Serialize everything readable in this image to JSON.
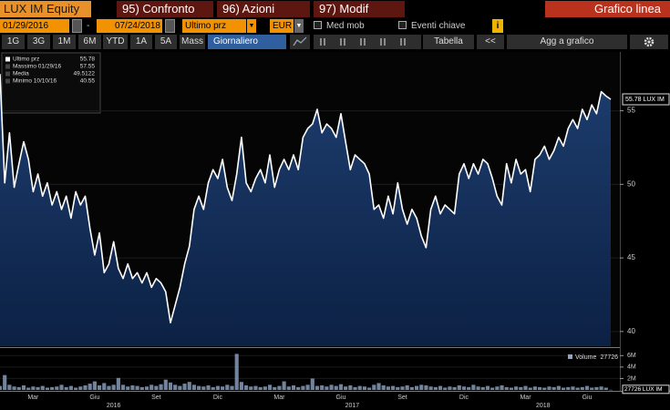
{
  "header": {
    "ticker": "LUX IM Equity",
    "menu": [
      "95) Confronto",
      "96) Azioni",
      "97) Modif"
    ],
    "view": "Grafico linea"
  },
  "controls": {
    "start": "01/29/2016",
    "dash": "-",
    "end": "07/24/2018",
    "field": "Ultimo prz",
    "currency": "EUR",
    "moving_avg": "Med mob",
    "events": "Eventi chiave",
    "info": "i"
  },
  "toolbar": {
    "periods": [
      "1G",
      "3G",
      "1M",
      "6M",
      "YTD",
      "1A",
      "5A",
      "Mass"
    ],
    "frequency": "Giornaliero",
    "table": "Tabella",
    "collapse": "<<",
    "add": "Agg a grafico"
  },
  "chart_data": {
    "type": "line",
    "categories": [
      null,
      null,
      null,
      null,
      null,
      null,
      null,
      "Mar",
      null,
      null,
      null,
      null,
      null,
      null,
      null,
      null,
      null,
      null,
      null,
      null,
      "Giu",
      null,
      null,
      null,
      null,
      null,
      null,
      null,
      null,
      null,
      null,
      null,
      null,
      "Set",
      null,
      null,
      null,
      null,
      null,
      null,
      null,
      null,
      null,
      null,
      null,
      null,
      "Dic",
      null,
      null,
      null,
      null,
      null,
      null,
      null,
      null,
      null,
      null,
      null,
      null,
      "Mar",
      null,
      null,
      null,
      null,
      null,
      null,
      null,
      null,
      null,
      null,
      null,
      null,
      "Giu",
      null,
      null,
      null,
      null,
      null,
      null,
      null,
      null,
      null,
      null,
      null,
      null,
      "Set",
      null,
      null,
      null,
      null,
      null,
      null,
      null,
      null,
      null,
      null,
      null,
      null,
      "Dic",
      null,
      null,
      null,
      null,
      null,
      null,
      null,
      null,
      null,
      null,
      null,
      null,
      "Mar",
      null,
      null,
      null,
      null,
      null,
      null,
      null,
      null,
      null,
      null,
      null,
      null,
      "Giu",
      null,
      null,
      null,
      null,
      null
    ],
    "years": [
      "2016",
      "2017",
      "2018"
    ],
    "series": [
      {
        "name": "Ultimo prz",
        "color": "#ffffff",
        "values": [
          57.5,
          50.1,
          53.5,
          49.8,
          51.4,
          52.9,
          51.7,
          49.5,
          50.7,
          49.2,
          50.1,
          48.6,
          49.5,
          48.3,
          49.2,
          47.7,
          49.5,
          48.6,
          49.2,
          47.0,
          45.2,
          46.7,
          44.0,
          44.6,
          46.1,
          44.3,
          43.6,
          44.6,
          43.6,
          44.0,
          43.3,
          44.0,
          43.0,
          43.6,
          43.3,
          42.7,
          40.6,
          41.8,
          43.0,
          44.6,
          45.8,
          48.3,
          49.2,
          48.3,
          50.1,
          51.0,
          50.4,
          51.7,
          49.8,
          48.9,
          50.7,
          53.2,
          50.1,
          49.5,
          50.4,
          51.0,
          50.1,
          52.0,
          49.8,
          51.0,
          51.7,
          51.0,
          52.0,
          51.0,
          53.2,
          53.8,
          54.1,
          55.1,
          53.5,
          54.1,
          53.8,
          53.2,
          54.8,
          52.9,
          51.0,
          52.0,
          51.7,
          51.4,
          50.7,
          48.3,
          48.6,
          47.7,
          49.2,
          48.0,
          50.1,
          48.3,
          47.3,
          48.3,
          47.7,
          46.5,
          45.7,
          48.3,
          49.2,
          48.0,
          48.6,
          48.3,
          48.0,
          50.7,
          51.4,
          50.4,
          51.4,
          50.7,
          51.7,
          51.4,
          50.4,
          49.2,
          48.6,
          51.4,
          50.1,
          51.7,
          50.7,
          51.0,
          49.5,
          51.7,
          52.0,
          52.6,
          51.7,
          52.3,
          53.2,
          52.6,
          53.8,
          54.4,
          53.8,
          55.1,
          54.4,
          55.4,
          54.8,
          56.3,
          56.0,
          55.78
        ]
      }
    ],
    "ylim": [
      39,
      59
    ],
    "yticks": [
      40,
      45,
      50,
      55
    ],
    "grid": true,
    "last_label": {
      "value": 55.78,
      "label": "55.78 LUX IM"
    },
    "stats": [
      {
        "label": "Ultimo prz",
        "value": 55.78
      },
      {
        "label": "Massimo 01/29/16",
        "value": 57.55
      },
      {
        "label": "Media",
        "value": 49.5122
      },
      {
        "label": "Minimo 10/10/16",
        "value": 40.55
      }
    ],
    "volume": {
      "name": "Volume",
      "color": "#8ea4c4",
      "legend_value": 27726,
      "values": [
        700000,
        2600000,
        900000,
        600000,
        500000,
        800000,
        400000,
        600000,
        500000,
        700000,
        400000,
        500000,
        600000,
        900000,
        500000,
        700000,
        400000,
        600000,
        800000,
        1100000,
        1500000,
        800000,
        1200000,
        700000,
        900000,
        2100000,
        900000,
        600000,
        800000,
        700000,
        500000,
        600000,
        900000,
        700000,
        1000000,
        1800000,
        1300000,
        900000,
        700000,
        1100000,
        1400000,
        900000,
        700000,
        600000,
        800000,
        500000,
        700000,
        600000,
        900000,
        700000,
        6300000,
        1400000,
        800000,
        600000,
        700000,
        500000,
        600000,
        900000,
        500000,
        700000,
        1500000,
        600000,
        800000,
        500000,
        700000,
        900000,
        2000000,
        700000,
        800000,
        600000,
        900000,
        700000,
        1000000,
        600000,
        800000,
        500000,
        700000,
        600000,
        400000,
        900000,
        1200000,
        800000,
        600000,
        700000,
        500000,
        600000,
        800000,
        500000,
        700000,
        900000,
        800000,
        600000,
        500000,
        700000,
        400000,
        600000,
        500000,
        800000,
        600000,
        500000,
        900000,
        600000,
        500000,
        700000,
        400000,
        600000,
        800000,
        500000,
        400000,
        600000,
        500000,
        700000,
        400000,
        600000,
        500000,
        400000,
        600000,
        500000,
        700000,
        400000,
        500000,
        600000,
        400000,
        500000,
        700000,
        400000,
        500000,
        600000,
        400000,
        27726
      ],
      "ylim": [
        0,
        7000000
      ],
      "yticks": [
        {
          "value": 2000000,
          "label": "2M"
        },
        {
          "value": 4000000,
          "label": "4M"
        },
        {
          "value": 6000000,
          "label": "6M"
        }
      ],
      "last_label": {
        "value": 27726,
        "label": "27726 LUX IM"
      }
    }
  }
}
